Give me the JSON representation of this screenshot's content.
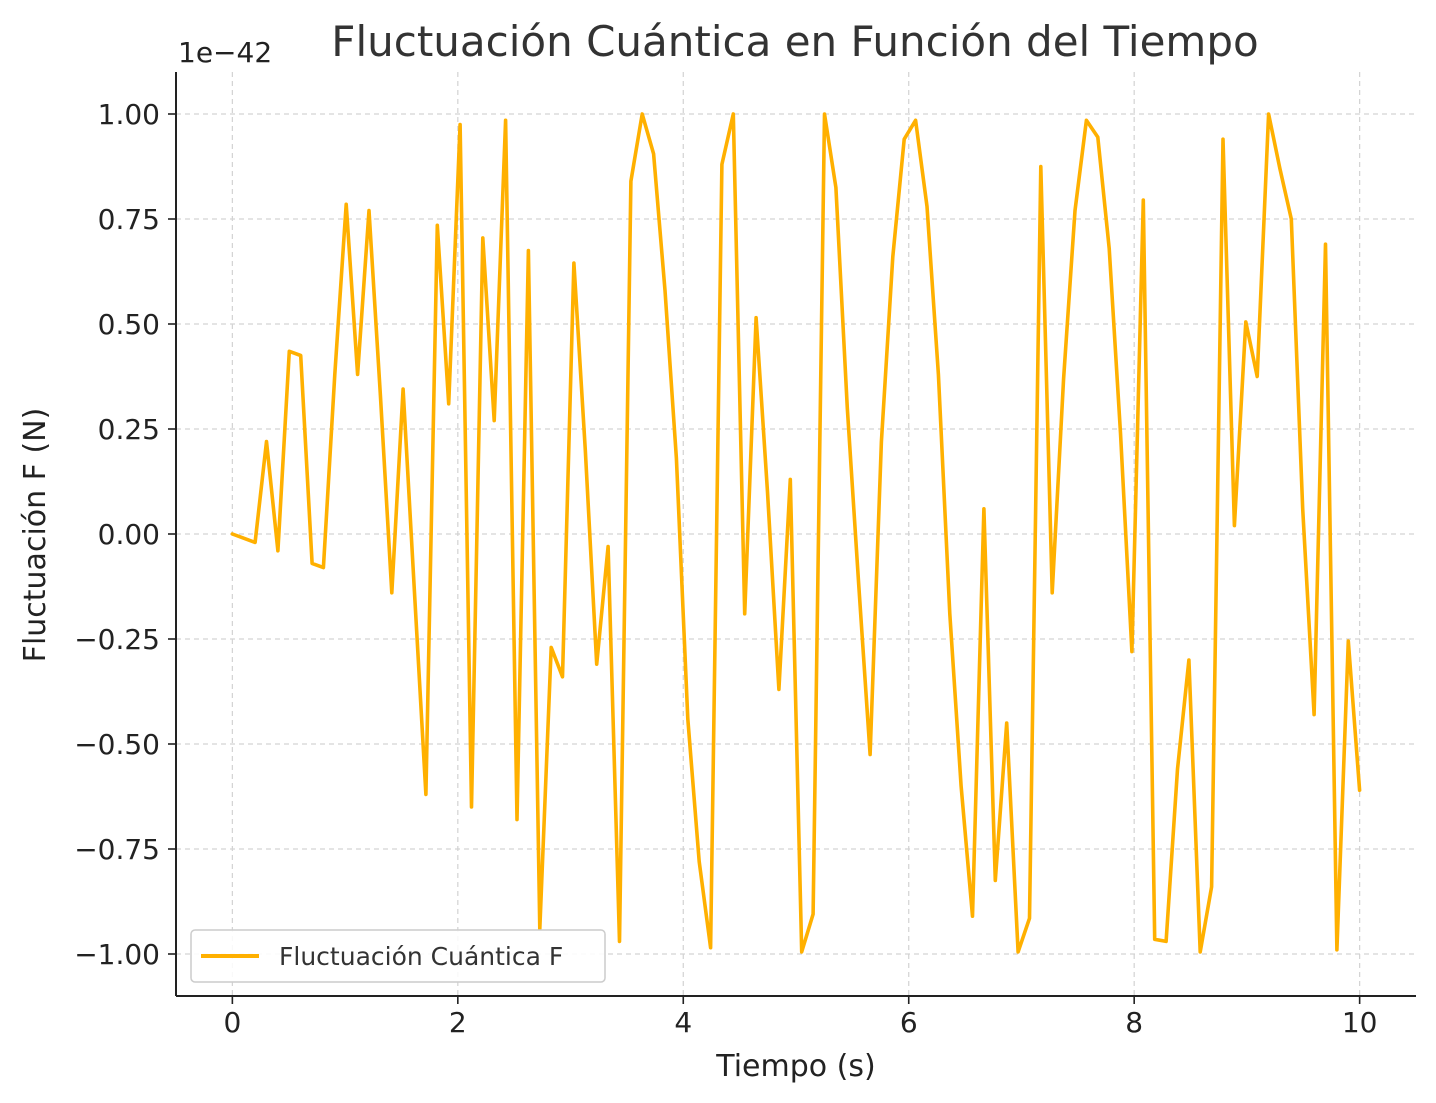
{
  "chart_data": {
    "type": "line",
    "title": "Fluctuación Cuántica en Función del Tiempo",
    "xlabel": "Tiempo (s)",
    "ylabel": "Fluctuación F (N)",
    "y_offset_text": "1e−42",
    "xlim": [
      -0.5,
      10.5
    ],
    "ylim": [
      -1.1,
      1.1
    ],
    "x_ticks": [
      0,
      2,
      4,
      6,
      8,
      10
    ],
    "x_tick_labels": [
      "0",
      "2",
      "4",
      "6",
      "8",
      "10"
    ],
    "y_ticks": [
      1.0,
      0.75,
      0.5,
      0.25,
      0.0,
      -0.25,
      -0.5,
      -0.75,
      -1.0
    ],
    "y_tick_labels": [
      "1.00",
      "0.75",
      "0.50",
      "0.25",
      "0.00",
      "−0.25",
      "−0.50",
      "−0.75",
      "−1.00"
    ],
    "grid": true,
    "legend_position": "bottom-left",
    "series": [
      {
        "name": "Fluctuación Cuántica F",
        "color": "#FFB000",
        "x": [
          0.0,
          0.101,
          0.202,
          0.303,
          0.404,
          0.505,
          0.606,
          0.707,
          0.808,
          0.909,
          1.01,
          1.111,
          1.212,
          1.313,
          1.414,
          1.515,
          1.616,
          1.717,
          1.818,
          1.919,
          2.02,
          2.121,
          2.222,
          2.323,
          2.424,
          2.525,
          2.626,
          2.727,
          2.828,
          2.929,
          3.03,
          3.131,
          3.232,
          3.333,
          3.434,
          3.535,
          3.636,
          3.737,
          3.838,
          3.939,
          4.04,
          4.141,
          4.242,
          4.343,
          4.444,
          4.545,
          4.646,
          4.747,
          4.848,
          4.949,
          5.051,
          5.152,
          5.253,
          5.354,
          5.455,
          5.556,
          5.657,
          5.758,
          5.859,
          5.96,
          6.061,
          6.162,
          6.263,
          6.364,
          6.465,
          6.566,
          6.667,
          6.768,
          6.869,
          6.97,
          7.071,
          7.172,
          7.273,
          7.374,
          7.475,
          7.576,
          7.677,
          7.778,
          7.879,
          7.98,
          8.081,
          8.182,
          8.283,
          8.384,
          8.485,
          8.586,
          8.687,
          8.788,
          8.889,
          8.99,
          9.091,
          9.192,
          9.293,
          9.394,
          9.495,
          9.596,
          9.697,
          9.798,
          9.899,
          10.0
        ],
        "values": [
          0.0,
          -0.01,
          -0.02,
          0.22,
          -0.04,
          0.435,
          0.425,
          -0.07,
          -0.08,
          0.38,
          0.785,
          0.38,
          0.77,
          0.33,
          -0.14,
          0.345,
          -0.14,
          -0.62,
          0.735,
          0.31,
          0.975,
          -0.65,
          0.705,
          0.27,
          0.985,
          -0.68,
          0.675,
          -0.94,
          -0.27,
          -0.34,
          0.645,
          0.2,
          -0.31,
          -0.03,
          -0.97,
          0.84,
          1.0,
          0.905,
          0.58,
          0.18,
          -0.44,
          -0.78,
          -0.985,
          0.88,
          1.0,
          -0.19,
          0.515,
          0.1,
          -0.37,
          0.13,
          -0.995,
          -0.905,
          1.0,
          0.825,
          0.3,
          -0.12,
          -0.525,
          0.22,
          0.66,
          0.94,
          0.985,
          0.78,
          0.38,
          -0.19,
          -0.6,
          -0.91,
          0.06,
          -0.825,
          -0.45,
          -0.995,
          -0.915,
          0.875,
          -0.14,
          0.37,
          0.77,
          0.985,
          0.945,
          0.68,
          0.24,
          -0.28,
          0.795,
          -0.965,
          -0.97,
          -0.56,
          -0.3,
          -0.995,
          -0.84,
          0.94,
          0.02,
          0.505,
          0.375,
          1.0,
          0.87,
          0.75,
          0.06,
          -0.43,
          0.69,
          -0.99,
          -0.255,
          -0.61
        ]
      }
    ]
  }
}
